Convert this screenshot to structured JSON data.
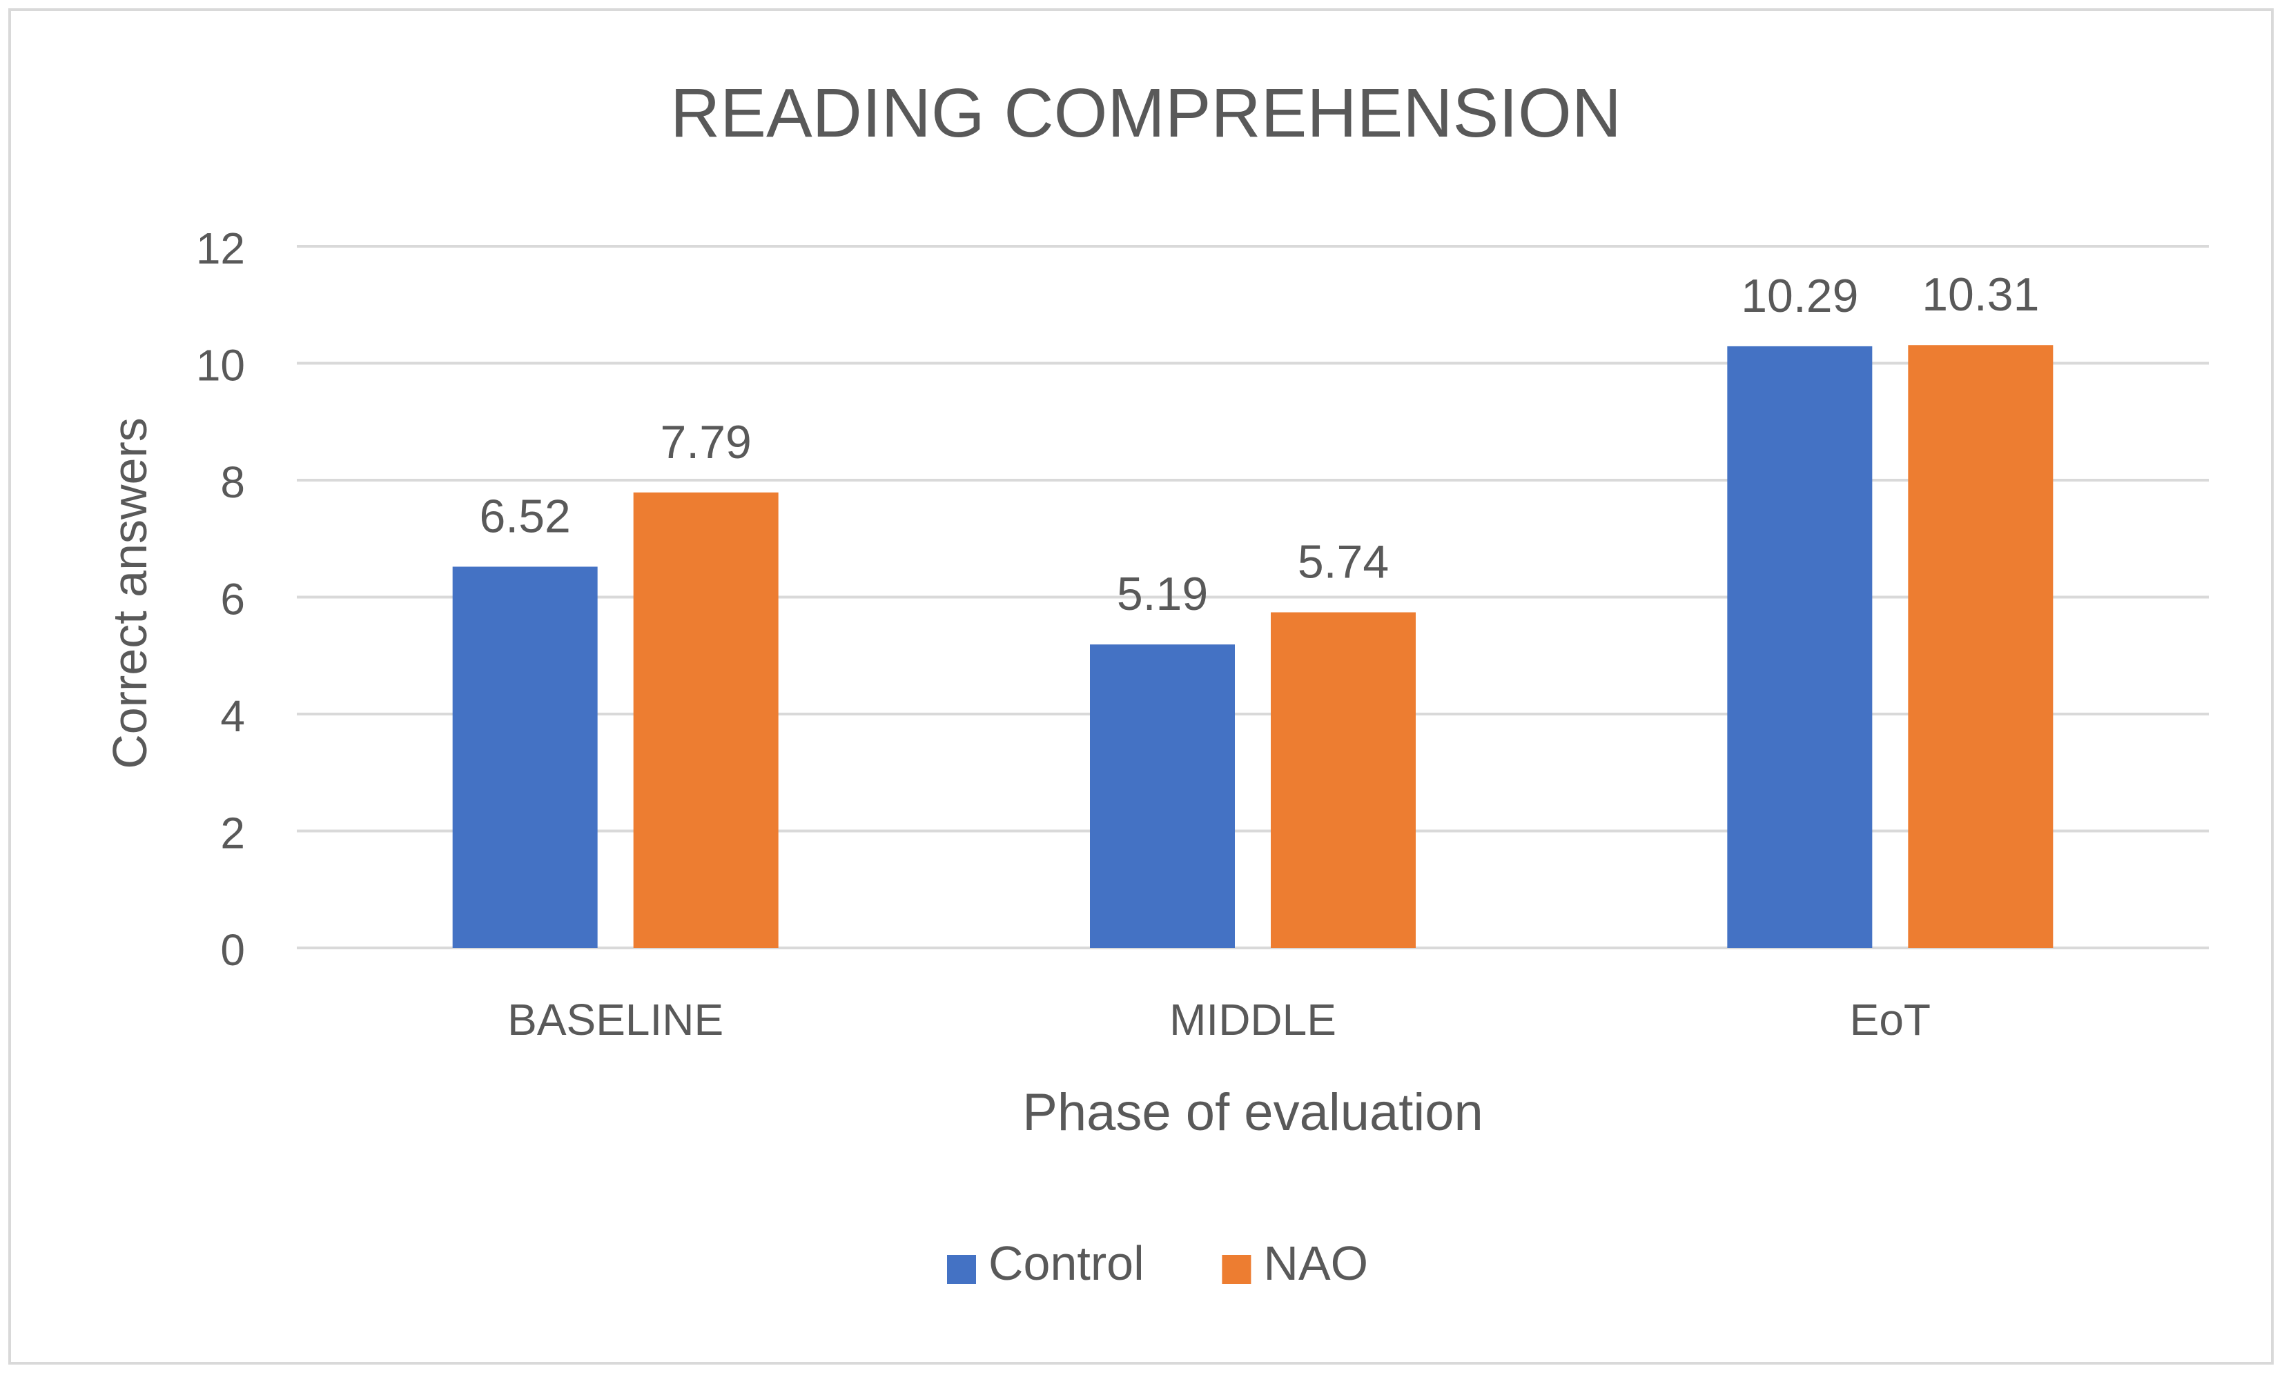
{
  "chart_data": {
    "type": "bar",
    "title": "READING COMPREHENSION",
    "xlabel": "Phase of evaluation",
    "ylabel": "Correct answers",
    "categories": [
      "BASELINE",
      "MIDDLE",
      "EoT"
    ],
    "series": [
      {
        "name": "Control",
        "values": [
          6.52,
          5.19,
          10.29
        ],
        "labels": [
          "6.52",
          "5.19",
          "10.29"
        ],
        "color": "#4472C4"
      },
      {
        "name": "NAO",
        "values": [
          7.79,
          5.74,
          10.31
        ],
        "labels": [
          "7.79",
          "5.74",
          "10.31"
        ],
        "color": "#ED7D31"
      }
    ],
    "ylim": [
      0,
      12
    ],
    "yticks": [
      0,
      2,
      4,
      6,
      8,
      10,
      12
    ],
    "grid": true,
    "legend_position": "bottom"
  },
  "colors": {
    "text": "#595959",
    "title": "#595959",
    "grid": "#D9D9D9",
    "border": "#D9D9D9"
  }
}
